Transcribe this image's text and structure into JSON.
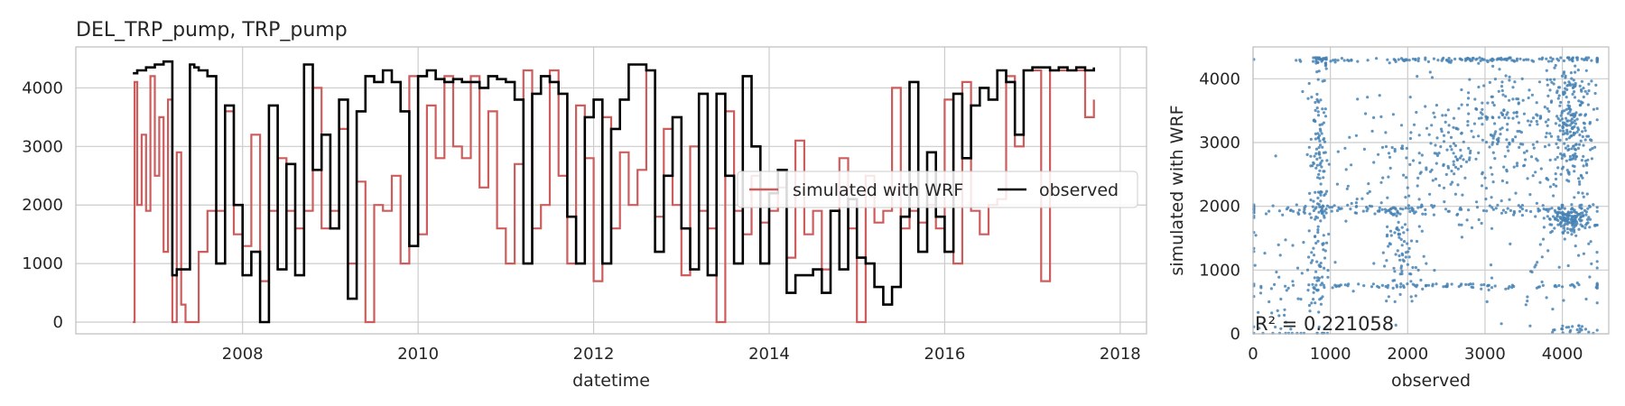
{
  "title": "DEL_TRP_pump, TRP_pump",
  "colors": {
    "simulated": "#cd5c5c",
    "observed": "#000000",
    "scatter": "#4682b4",
    "grid": "#cccccc",
    "frame": "#bfbfbf"
  },
  "chart_data": [
    {
      "type": "line",
      "title": "DEL_TRP_pump, TRP_pump",
      "xlabel": "datetime",
      "ylabel": "",
      "xlim": [
        2006.1,
        2018.3
      ],
      "ylim": [
        -200,
        4700
      ],
      "xticks": [
        2008,
        2010,
        2012,
        2014,
        2016,
        2018
      ],
      "xtick_labels": [
        "2008",
        "2010",
        "2012",
        "2014",
        "2016",
        "2018"
      ],
      "yticks": [
        0,
        1000,
        2000,
        3000,
        4000
      ],
      "ytick_labels": [
        "0",
        "1000",
        "2000",
        "3000",
        "4000"
      ],
      "grid": true,
      "legend_position": "center-right",
      "series": [
        {
          "name": "simulated with WRF",
          "color": "#cd5c5c",
          "x": [
            2006.75,
            2006.77,
            2006.8,
            2006.85,
            2006.9,
            2006.95,
            2007.0,
            2007.05,
            2007.1,
            2007.15,
            2007.2,
            2007.25,
            2007.3,
            2007.35,
            2007.4,
            2007.5,
            2007.6,
            2007.7,
            2007.8,
            2007.9,
            2008.0,
            2008.1,
            2008.2,
            2008.3,
            2008.4,
            2008.5,
            2008.6,
            2008.7,
            2008.8,
            2008.9,
            2009.0,
            2009.1,
            2009.2,
            2009.3,
            2009.4,
            2009.5,
            2009.6,
            2009.7,
            2009.8,
            2009.9,
            2010.0,
            2010.1,
            2010.2,
            2010.3,
            2010.4,
            2010.5,
            2010.6,
            2010.7,
            2010.8,
            2010.9,
            2011.0,
            2011.1,
            2011.2,
            2011.3,
            2011.4,
            2011.5,
            2011.6,
            2011.7,
            2011.8,
            2011.9,
            2012.0,
            2012.1,
            2012.2,
            2012.3,
            2012.4,
            2012.5,
            2012.6,
            2012.7,
            2012.8,
            2012.9,
            2013.0,
            2013.1,
            2013.2,
            2013.3,
            2013.4,
            2013.5,
            2013.6,
            2013.7,
            2013.8,
            2013.9,
            2014.0,
            2014.1,
            2014.2,
            2014.3,
            2014.4,
            2014.5,
            2014.6,
            2014.7,
            2014.8,
            2014.9,
            2015.0,
            2015.1,
            2015.2,
            2015.3,
            2015.4,
            2015.5,
            2015.6,
            2015.7,
            2015.8,
            2015.9,
            2016.0,
            2016.1,
            2016.2,
            2016.3,
            2016.4,
            2016.5,
            2016.6,
            2016.7,
            2016.8,
            2016.9,
            2017.0,
            2017.1,
            2017.2,
            2017.3,
            2017.4,
            2017.5,
            2017.6,
            2017.7
          ],
          "y": [
            0,
            4100,
            2000,
            3200,
            1900,
            4200,
            2500,
            3500,
            1200,
            3800,
            0,
            2900,
            300,
            0,
            0,
            1200,
            1900,
            1900,
            3600,
            1500,
            1300,
            3200,
            700,
            1900,
            2800,
            1900,
            1600,
            1900,
            4000,
            1600,
            1900,
            3300,
            1000,
            2400,
            0,
            2000,
            1900,
            2500,
            1000,
            4200,
            1500,
            3700,
            2800,
            4200,
            3000,
            2800,
            4200,
            2300,
            3600,
            1600,
            1000,
            2700,
            4300,
            1600,
            2000,
            4300,
            2500,
            1000,
            3700,
            2800,
            700,
            3500,
            1600,
            2900,
            2000,
            2600,
            4300,
            1800,
            3300,
            2000,
            800,
            3000,
            1900,
            1600,
            0,
            3600,
            1900,
            1500,
            2500,
            1700,
            1900,
            2300,
            1100,
            3100,
            1500,
            1900,
            900,
            1900,
            2800,
            1600,
            0,
            2500,
            1700,
            1900,
            4000,
            1600,
            1900,
            1700,
            2000,
            1600,
            3800,
            1000,
            4100,
            1900,
            1500,
            2000,
            2100,
            4200,
            3000,
            4300,
            4300,
            700,
            4300,
            4300,
            4300,
            4300,
            3500,
            3800
          ]
        },
        {
          "name": "observed",
          "color": "#000000",
          "x": [
            2006.75,
            2006.8,
            2006.9,
            2007.0,
            2007.1,
            2007.2,
            2007.25,
            2007.3,
            2007.4,
            2007.45,
            2007.5,
            2007.6,
            2007.7,
            2007.8,
            2007.9,
            2008.0,
            2008.1,
            2008.2,
            2008.3,
            2008.4,
            2008.5,
            2008.6,
            2008.7,
            2008.8,
            2008.9,
            2009.0,
            2009.1,
            2009.2,
            2009.3,
            2009.4,
            2009.5,
            2009.6,
            2009.7,
            2009.8,
            2009.9,
            2010.0,
            2010.1,
            2010.2,
            2010.3,
            2010.4,
            2010.5,
            2010.6,
            2010.7,
            2010.8,
            2010.9,
            2011.0,
            2011.1,
            2011.2,
            2011.3,
            2011.4,
            2011.5,
            2011.6,
            2011.7,
            2011.8,
            2011.9,
            2012.0,
            2012.1,
            2012.2,
            2012.3,
            2012.4,
            2012.5,
            2012.6,
            2012.7,
            2012.8,
            2012.9,
            2013.0,
            2013.1,
            2013.2,
            2013.3,
            2013.4,
            2013.5,
            2013.6,
            2013.7,
            2013.8,
            2013.9,
            2014.0,
            2014.1,
            2014.2,
            2014.3,
            2014.4,
            2014.5,
            2014.6,
            2014.7,
            2014.8,
            2014.9,
            2015.0,
            2015.1,
            2015.2,
            2015.3,
            2015.4,
            2015.5,
            2015.6,
            2015.7,
            2015.8,
            2015.9,
            2016.0,
            2016.1,
            2016.2,
            2016.3,
            2016.4,
            2016.5,
            2016.6,
            2016.7,
            2016.8,
            2016.9,
            2017.0,
            2017.1,
            2017.2,
            2017.3,
            2017.4,
            2017.5,
            2017.6,
            2017.7
          ],
          "y": [
            4250,
            4300,
            4350,
            4400,
            4450,
            800,
            900,
            900,
            4400,
            4350,
            4300,
            4200,
            1000,
            3700,
            2000,
            800,
            1200,
            0,
            3700,
            900,
            2700,
            800,
            4400,
            2600,
            3200,
            1600,
            3800,
            400,
            3600,
            4200,
            4100,
            4300,
            4100,
            3600,
            1300,
            4200,
            4300,
            4150,
            4100,
            4150,
            4100,
            4100,
            4000,
            4200,
            4150,
            4100,
            3800,
            1000,
            3900,
            4200,
            4100,
            3900,
            1800,
            1000,
            3500,
            3800,
            1000,
            3300,
            3800,
            4400,
            4400,
            4300,
            1200,
            2500,
            3500,
            1600,
            900,
            3900,
            800,
            3900,
            2500,
            1000,
            4200,
            3000,
            1000,
            2200,
            2600,
            500,
            800,
            800,
            900,
            500,
            1900,
            900,
            2100,
            1100,
            1000,
            600,
            300,
            600,
            1800,
            4100,
            1200,
            2900,
            1800,
            1200,
            3900,
            2800,
            3700,
            4000,
            3800,
            4300,
            4100,
            3200,
            4300,
            4350,
            4350,
            4300,
            4350,
            4300,
            4350,
            4300,
            4350
          ]
        }
      ]
    },
    {
      "type": "scatter",
      "title": "",
      "xlabel": "observed",
      "ylabel": "simulated with WRF",
      "xlim": [
        0,
        4600
      ],
      "ylim": [
        0,
        4500
      ],
      "xticks": [
        0,
        1000,
        2000,
        3000,
        4000
      ],
      "xtick_labels": [
        "0",
        "1000",
        "2000",
        "3000",
        "4000"
      ],
      "yticks": [
        0,
        1000,
        2000,
        3000,
        4000
      ],
      "ytick_labels": [
        "0",
        "1000",
        "2000",
        "3000",
        "4000"
      ],
      "grid": true,
      "annotation": "R² = 0.221058",
      "clusters": [
        {
          "x": 850,
          "y": 2300,
          "sx": 60,
          "sy": 1300,
          "n": 180
        },
        {
          "x": 900,
          "y": 4300,
          "sx": 60,
          "sy": 20,
          "n": 20
        },
        {
          "x": 3000,
          "y": 4300,
          "sx": 1200,
          "sy": 15,
          "n": 140
        },
        {
          "x": 2000,
          "y": 1950,
          "sx": 1500,
          "sy": 50,
          "n": 160
        },
        {
          "x": 2100,
          "y": 750,
          "sx": 1400,
          "sy": 20,
          "n": 90
        },
        {
          "x": 4100,
          "y": 3300,
          "sx": 150,
          "sy": 600,
          "n": 260
        },
        {
          "x": 4100,
          "y": 1800,
          "sx": 150,
          "sy": 100,
          "n": 160
        },
        {
          "x": 3400,
          "y": 3200,
          "sx": 350,
          "sy": 500,
          "n": 150
        },
        {
          "x": 2700,
          "y": 2900,
          "sx": 350,
          "sy": 500,
          "n": 130
        },
        {
          "x": 1900,
          "y": 1200,
          "sx": 150,
          "sy": 500,
          "n": 90
        },
        {
          "x": 400,
          "y": 700,
          "sx": 300,
          "sy": 500,
          "n": 60
        },
        {
          "x": 1700,
          "y": 2800,
          "sx": 600,
          "sy": 600,
          "n": 80
        },
        {
          "x": 3800,
          "y": 900,
          "sx": 400,
          "sy": 400,
          "n": 50
        },
        {
          "x": 4100,
          "y": 60,
          "sx": 200,
          "sy": 40,
          "n": 25
        }
      ]
    }
  ]
}
